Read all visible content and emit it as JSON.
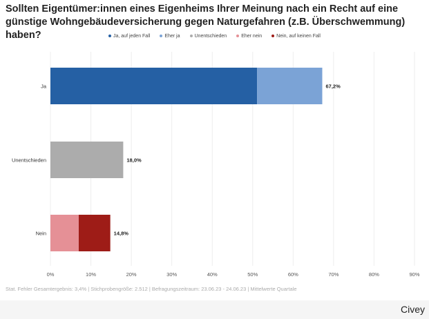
{
  "chart_data": {
    "type": "bar",
    "orientation": "horizontal",
    "stacked": true,
    "title": "Sollten Eigentümer:innen eines Eigenheims Ihrer Meinung nach ein Recht auf eine günstige Wohngebäudeversicherung gegen Naturgefahren (z.B. Überschwemmung) haben?",
    "categories": [
      "Ja",
      "Unentschieden",
      "Nein"
    ],
    "series": [
      {
        "name": "Ja, auf jeden Fall",
        "color": "#2560a4",
        "values": [
          51.1,
          0,
          0
        ]
      },
      {
        "name": "Eher ja",
        "color": "#7ba3d6",
        "values": [
          16.1,
          0,
          0
        ]
      },
      {
        "name": "Unentschieden",
        "color": "#acacac",
        "values": [
          0,
          18.0,
          0
        ]
      },
      {
        "name": "Eher nein",
        "color": "#e59096",
        "values": [
          0,
          0,
          7.0
        ]
      },
      {
        "name": "Nein, auf keinen Fall",
        "color": "#9e1c17",
        "values": [
          0,
          0,
          7.8
        ]
      }
    ],
    "totals_labels": [
      "67,2%",
      "18,0%",
      "14,8%"
    ],
    "xlim": [
      0,
      90
    ],
    "xticks": [
      "0%",
      "10%",
      "20%",
      "30%",
      "40%",
      "50%",
      "60%",
      "70%",
      "80%",
      "90%"
    ],
    "grid": true,
    "legend": "top"
  },
  "footer": {
    "note": "Stat. Fehler Gesamtergebnis: 3,4% | Stichprobengröße: 2.512 | Befragungszeitraum: 23.06.23 - 24.06.23 | Mittelwerte Quartale",
    "brand": "Civey"
  }
}
